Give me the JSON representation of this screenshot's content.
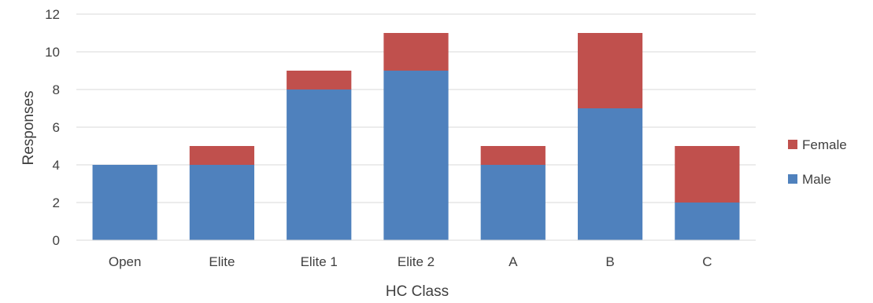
{
  "chart_data": {
    "type": "bar",
    "stacked": true,
    "title": "",
    "xlabel": "HC Class",
    "ylabel": "Responses",
    "categories": [
      "Open",
      "Elite",
      "Elite 1",
      "Elite 2",
      "A",
      "B",
      "C"
    ],
    "series": [
      {
        "name": "Male",
        "color": "#4F81BD",
        "values": [
          4,
          4,
          8,
          9,
          4,
          7,
          2
        ]
      },
      {
        "name": "Female",
        "color": "#C0504D",
        "values": [
          0,
          1,
          1,
          2,
          1,
          4,
          3
        ]
      }
    ],
    "ylim": [
      0,
      12
    ],
    "yticks": [
      "0",
      "2",
      "4",
      "6",
      "8",
      "10",
      "12"
    ],
    "grid": true,
    "legend_position": "right",
    "legend_order": [
      "Female",
      "Male"
    ]
  }
}
